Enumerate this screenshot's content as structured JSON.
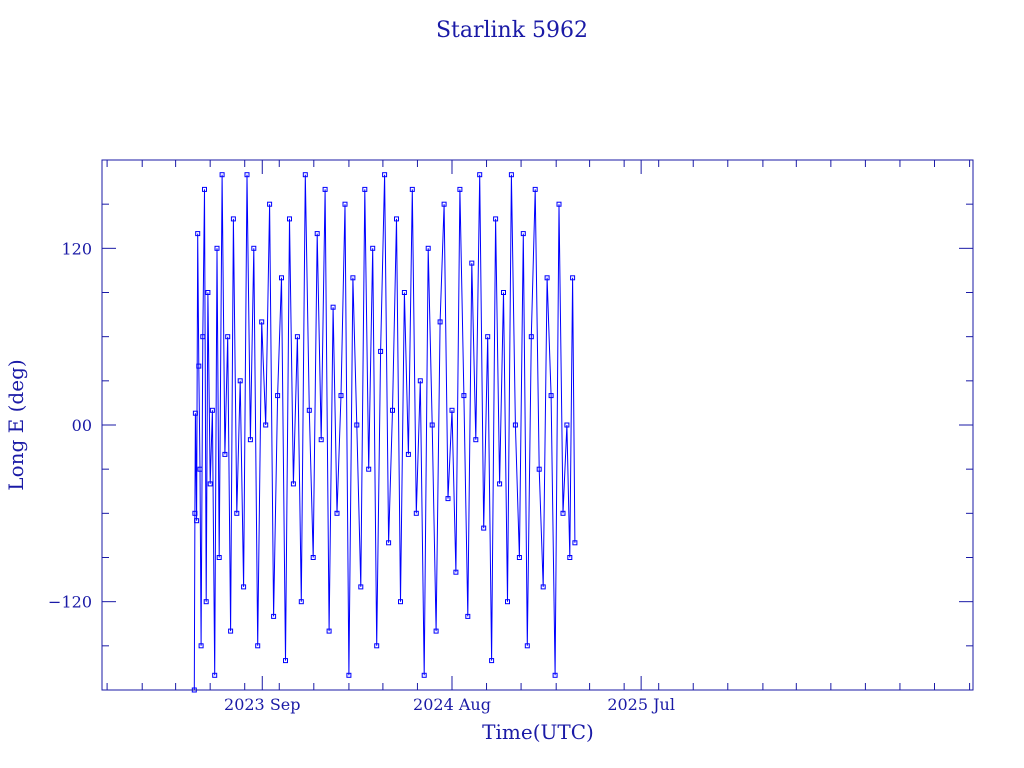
{
  "chart_data": {
    "type": "line",
    "title": "Starlink 5962",
    "xlabel": "Time(UTC)",
    "ylabel": "Long E (deg)",
    "ylim": [
      -180,
      180
    ],
    "yticks": [
      {
        "value": -120,
        "label": "−120"
      },
      {
        "value": 0,
        "label": "00"
      },
      {
        "value": 120,
        "label": "120"
      }
    ],
    "xlim": [
      "2022-11-22",
      "2027-02-07"
    ],
    "xticks": [
      {
        "value": "2023-09-01",
        "label": "2023 Sep"
      },
      {
        "value": "2024-08-01",
        "label": "2024 Aug"
      },
      {
        "value": "2025-07-01",
        "label": "2025 Jul"
      }
    ],
    "grid": false,
    "colors": {
      "axis": "#1a1aa6",
      "series": "#0000ff"
    },
    "series": [
      {
        "marker": "square",
        "x": [
          "2023-05-04",
          "2023-05-05",
          "2023-05-06",
          "2023-05-08",
          "2023-05-10",
          "2023-05-12",
          "2023-05-14",
          "2023-05-16",
          "2023-05-19",
          "2023-05-22",
          "2023-05-25",
          "2023-05-28",
          "2023-06-01",
          "2023-06-05",
          "2023-06-09",
          "2023-06-13",
          "2023-06-17",
          "2023-06-22",
          "2023-06-27",
          "2023-07-02",
          "2023-07-07",
          "2023-07-12",
          "2023-07-18",
          "2023-07-24",
          "2023-07-30",
          "2023-08-05",
          "2023-08-11",
          "2023-08-17",
          "2023-08-24",
          "2023-08-31",
          "2023-09-07",
          "2023-09-14",
          "2023-09-21",
          "2023-09-28",
          "2023-10-05",
          "2023-10-12",
          "2023-10-19",
          "2023-10-26",
          "2023-11-02",
          "2023-11-09",
          "2023-11-16",
          "2023-11-23",
          "2023-11-30",
          "2023-12-07",
          "2023-12-14",
          "2023-12-21",
          "2023-12-28",
          "2024-01-04",
          "2024-01-11",
          "2024-01-18",
          "2024-01-25",
          "2024-02-01",
          "2024-02-08",
          "2024-02-15",
          "2024-02-22",
          "2024-02-29",
          "2024-03-07",
          "2024-03-14",
          "2024-03-21",
          "2024-03-28",
          "2024-04-04",
          "2024-04-11",
          "2024-04-18",
          "2024-04-25",
          "2024-05-02",
          "2024-05-09",
          "2024-05-16",
          "2024-05-23",
          "2024-05-30",
          "2024-06-06",
          "2024-06-13",
          "2024-06-20",
          "2024-06-27",
          "2024-07-04",
          "2024-07-11",
          "2024-07-18",
          "2024-07-25",
          "2024-08-01",
          "2024-08-08",
          "2024-08-15",
          "2024-08-22",
          "2024-08-29",
          "2024-09-05",
          "2024-09-12",
          "2024-09-19",
          "2024-09-26",
          "2024-10-03",
          "2024-10-10",
          "2024-10-17",
          "2024-10-24",
          "2024-10-31",
          "2024-11-07",
          "2024-11-14",
          "2024-11-21",
          "2024-11-28",
          "2024-12-05",
          "2024-12-12",
          "2024-12-19",
          "2024-12-26",
          "2025-01-02",
          "2025-01-09",
          "2025-01-16",
          "2025-01-23",
          "2025-01-30",
          "2025-02-06",
          "2025-02-13",
          "2025-02-20",
          "2025-02-25",
          "2025-03-02",
          "2025-03-06"
        ],
        "y": [
          -180,
          -60,
          8,
          -65,
          130,
          40,
          -30,
          -150,
          60,
          160,
          -120,
          90,
          -40,
          10,
          -170,
          120,
          -90,
          170,
          -20,
          60,
          -140,
          140,
          -60,
          30,
          -110,
          170,
          -10,
          120,
          -150,
          70,
          0,
          150,
          -130,
          20,
          100,
          -160,
          140,
          -40,
          60,
          -120,
          170,
          10,
          -90,
          130,
          -10,
          160,
          -140,
          80,
          -60,
          20,
          150,
          -170,
          100,
          0,
          -110,
          160,
          -30,
          120,
          -150,
          50,
          170,
          -80,
          10,
          140,
          -120,
          90,
          -20,
          160,
          -60,
          30,
          -170,
          120,
          0,
          -140,
          70,
          150,
          -50,
          10,
          -100,
          160,
          20,
          -130,
          110,
          -10,
          170,
          -70,
          60,
          -160,
          140,
          -40,
          90,
          -120,
          170,
          0,
          -90,
          130,
          -150,
          60,
          160,
          -30,
          -110,
          100,
          20,
          -170,
          150,
          -60,
          0,
          -90,
          100,
          -80
        ]
      }
    ]
  }
}
